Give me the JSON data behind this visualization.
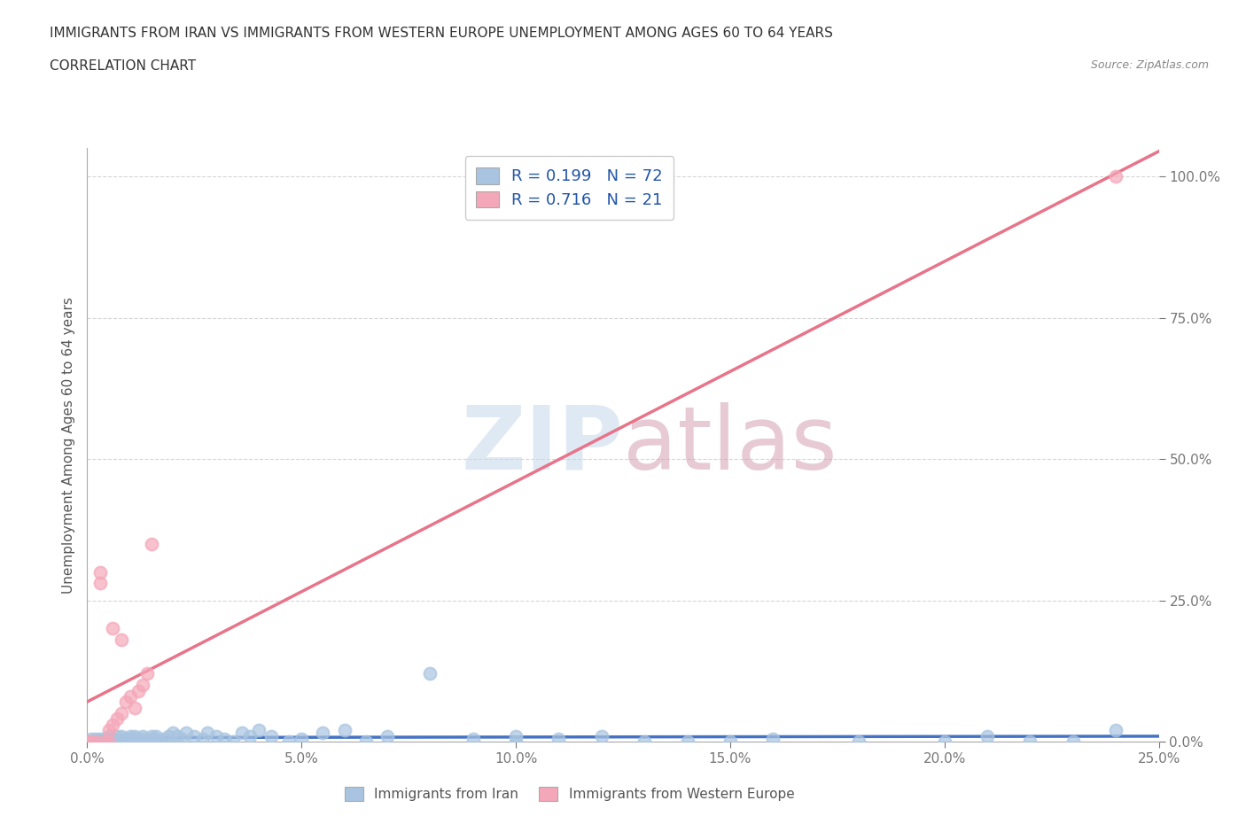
{
  "title": "IMMIGRANTS FROM IRAN VS IMMIGRANTS FROM WESTERN EUROPE UNEMPLOYMENT AMONG AGES 60 TO 64 YEARS",
  "subtitle": "CORRELATION CHART",
  "source": "Source: ZipAtlas.com",
  "ylabel": "Unemployment Among Ages 60 to 64 years",
  "xlim": [
    0.0,
    0.25
  ],
  "ylim": [
    0.0,
    1.05
  ],
  "yticks": [
    0.0,
    0.25,
    0.5,
    0.75,
    1.0
  ],
  "ytick_labels": [
    "0.0%",
    "25.0%",
    "50.0%",
    "75.0%",
    "100.0%"
  ],
  "xticks": [
    0.0,
    0.05,
    0.1,
    0.15,
    0.2,
    0.25
  ],
  "xtick_labels": [
    "0.0%",
    "5.0%",
    "10.0%",
    "15.0%",
    "20.0%",
    "25.0%"
  ],
  "blue_color": "#a8c4e0",
  "pink_color": "#f4a7b9",
  "line_blue": "#4472c4",
  "line_pink": "#e8748a",
  "legend_text_color": "#2255aa",
  "R_blue": 0.199,
  "N_blue": 72,
  "R_pink": 0.716,
  "N_pink": 21,
  "iran_x": [
    0.0,
    0.001,
    0.001,
    0.002,
    0.002,
    0.003,
    0.003,
    0.004,
    0.004,
    0.005,
    0.005,
    0.005,
    0.006,
    0.006,
    0.007,
    0.007,
    0.008,
    0.008,
    0.009,
    0.009,
    0.01,
    0.01,
    0.011,
    0.011,
    0.012,
    0.012,
    0.013,
    0.013,
    0.014,
    0.015,
    0.015,
    0.016,
    0.016,
    0.017,
    0.018,
    0.019,
    0.02,
    0.021,
    0.022,
    0.023,
    0.025,
    0.027,
    0.028,
    0.03,
    0.032,
    0.034,
    0.036,
    0.038,
    0.04,
    0.043,
    0.047,
    0.05,
    0.055,
    0.06,
    0.065,
    0.07,
    0.08,
    0.09,
    0.1,
    0.11,
    0.12,
    0.14,
    0.16,
    0.18,
    0.2,
    0.21,
    0.22,
    0.23,
    0.24,
    0.1,
    0.13,
    0.15
  ],
  "iran_y": [
    0.0,
    0.005,
    0.0,
    0.005,
    0.0,
    0.005,
    0.0,
    0.0,
    0.005,
    0.01,
    0.005,
    0.0,
    0.005,
    0.0,
    0.01,
    0.0,
    0.01,
    0.005,
    0.0,
    0.005,
    0.01,
    0.005,
    0.01,
    0.005,
    0.0,
    0.005,
    0.01,
    0.005,
    0.0,
    0.01,
    0.005,
    0.01,
    0.005,
    0.0,
    0.005,
    0.01,
    0.015,
    0.01,
    0.005,
    0.015,
    0.01,
    0.005,
    0.015,
    0.01,
    0.005,
    0.0,
    0.015,
    0.01,
    0.02,
    0.01,
    0.0,
    0.005,
    0.015,
    0.02,
    0.0,
    0.01,
    0.12,
    0.005,
    0.01,
    0.005,
    0.01,
    0.0,
    0.005,
    0.0,
    0.0,
    0.01,
    0.0,
    0.0,
    0.02,
    0.0,
    0.0,
    0.0
  ],
  "western_x": [
    0.0,
    0.001,
    0.002,
    0.003,
    0.003,
    0.004,
    0.005,
    0.005,
    0.006,
    0.006,
    0.007,
    0.008,
    0.008,
    0.009,
    0.01,
    0.011,
    0.012,
    0.013,
    0.014,
    0.015,
    0.24
  ],
  "western_y": [
    0.0,
    0.0,
    0.0,
    0.28,
    0.3,
    0.0,
    0.02,
    0.0,
    0.2,
    0.03,
    0.04,
    0.18,
    0.05,
    0.07,
    0.08,
    0.06,
    0.09,
    0.1,
    0.12,
    0.35,
    1.0
  ],
  "watermark_zip": "ZIP",
  "watermark_atlas": "atlas"
}
